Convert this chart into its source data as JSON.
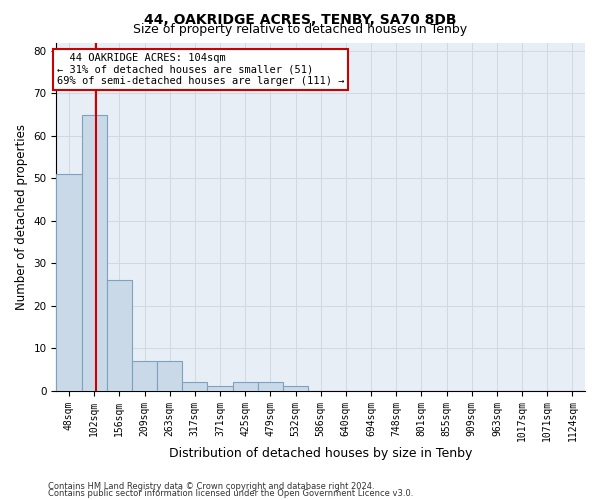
{
  "title": "44, OAKRIDGE ACRES, TENBY, SA70 8DB",
  "subtitle": "Size of property relative to detached houses in Tenby",
  "xlabel": "Distribution of detached houses by size in Tenby",
  "ylabel": "Number of detached properties",
  "footnote1": "Contains HM Land Registry data © Crown copyright and database right 2024.",
  "footnote2": "Contains public sector information licensed under the Open Government Licence v3.0.",
  "bar_labels": [
    "48sqm",
    "102sqm",
    "156sqm",
    "209sqm",
    "263sqm",
    "317sqm",
    "371sqm",
    "425sqm",
    "479sqm",
    "532sqm",
    "586sqm",
    "640sqm",
    "694sqm",
    "748sqm",
    "801sqm",
    "855sqm",
    "909sqm",
    "963sqm",
    "1017sqm",
    "1071sqm",
    "1124sqm"
  ],
  "bar_heights": [
    51,
    65,
    26,
    7,
    7,
    2,
    1,
    2,
    2,
    1,
    0,
    0,
    0,
    0,
    0,
    0,
    0,
    0,
    0,
    0,
    0
  ],
  "bar_color": "#c9d9e8",
  "bar_edge_color": "#7ba3c0",
  "ylim": [
    0,
    82
  ],
  "yticks": [
    0,
    10,
    20,
    30,
    40,
    50,
    60,
    70,
    80
  ],
  "grid_color": "#d0d8e0",
  "bg_color": "#e8eef5",
  "property_line_x": 1.08,
  "annotation_line1": "  44 OAKRIDGE ACRES: 104sqm",
  "annotation_line2": "← 31% of detached houses are smaller (51)",
  "annotation_line3": "69% of semi-detached houses are larger (111) →",
  "annotation_box_color": "#cc0000",
  "title_fontsize": 10,
  "subtitle_fontsize": 9,
  "tick_fontsize": 7,
  "ylabel_fontsize": 8.5,
  "xlabel_fontsize": 9
}
